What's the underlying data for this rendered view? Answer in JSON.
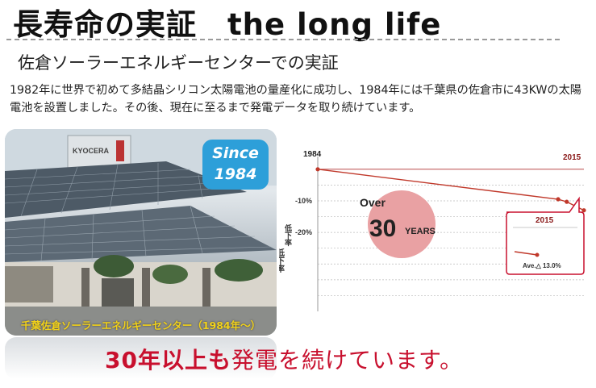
{
  "title": "長寿命の実証　the long life",
  "subtitle": "佐倉ソーラーエネルギーセンターでの実証",
  "body_text": "1982年に世界で初めて多結晶シリコン太陽電池の量産化に成功し、1984年には千葉県の佐倉市に43KWの太陽電池を設置しました。その後、現在に至るまで発電データを取り続けています。",
  "photo": {
    "sign_text": "KYOCERA",
    "badge_line1": "Since",
    "badge_line2": "1984",
    "caption": "千葉佐倉ソーラーエネルギーセンター（1984年〜）"
  },
  "chart_data": {
    "type": "line",
    "x": [
      1984,
      2012,
      2013,
      2015
    ],
    "values": [
      0,
      -9.5,
      -10.3,
      -13.0
    ],
    "start_label": "1984",
    "end_label": "2015",
    "y_ticks": [
      "-10%",
      "-20%"
    ],
    "ylabel": "低下率",
    "ylim": [
      -45,
      2
    ],
    "badge_line1": "Over",
    "badge_number": "30",
    "badge_unit": "YEARS",
    "callout_year": "2015",
    "callout_value": "Ave.△ 13.0%",
    "colors": {
      "line": "#c0392b",
      "badge": "#e9a1a3",
      "callout_border": "#c8102e"
    }
  },
  "slogan": {
    "bold_part": "30年以上も",
    "regular_part": "発電を続けています。"
  }
}
